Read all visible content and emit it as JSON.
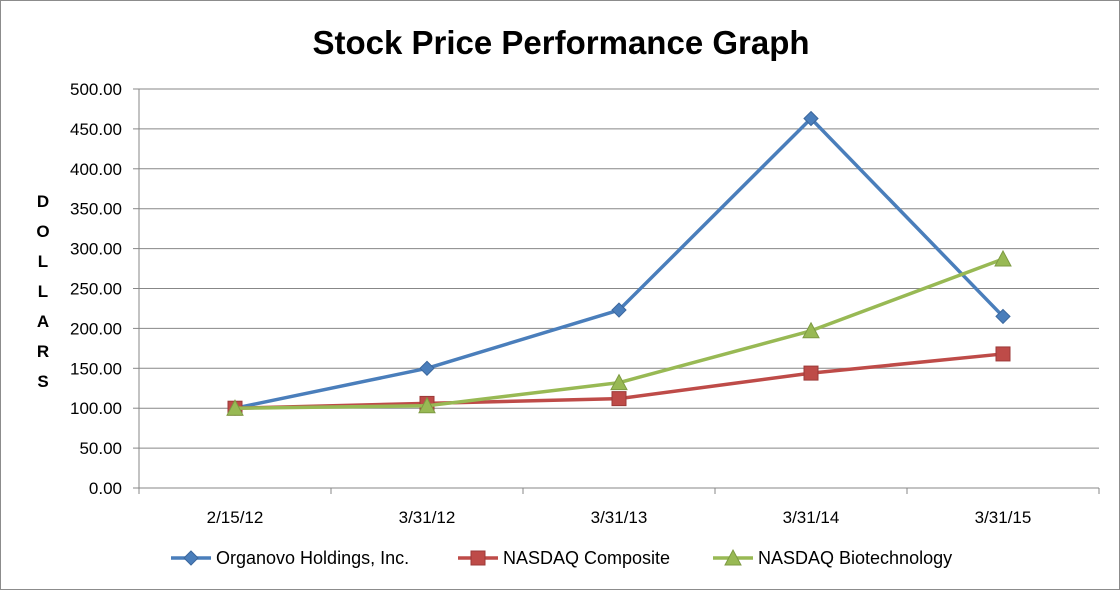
{
  "chart_data": {
    "type": "line",
    "title": "Stock Price Performance Graph",
    "ylabel": "DOLLARS",
    "xlabel": "",
    "categories": [
      "2/15/12",
      "3/31/12",
      "3/31/13",
      "3/31/14",
      "3/31/15"
    ],
    "ylim": [
      0,
      500
    ],
    "y_ticks": [
      "0.00",
      "50.00",
      "100.00",
      "150.00",
      "200.00",
      "250.00",
      "300.00",
      "350.00",
      "400.00",
      "450.00",
      "500.00"
    ],
    "grid": true,
    "legend_position": "bottom",
    "series": [
      {
        "name": "Organovo Holdings, Inc.",
        "values": [
          100,
          150,
          223,
          463,
          215
        ],
        "color": "#4a7ebb",
        "marker": "diamond"
      },
      {
        "name": "NASDAQ Composite",
        "values": [
          100,
          106,
          112,
          144,
          168
        ],
        "color": "#be4b48",
        "marker": "square"
      },
      {
        "name": "NASDAQ Biotechnology",
        "values": [
          100,
          103,
          132,
          197,
          287
        ],
        "color": "#98b954",
        "marker": "triangle"
      }
    ]
  }
}
